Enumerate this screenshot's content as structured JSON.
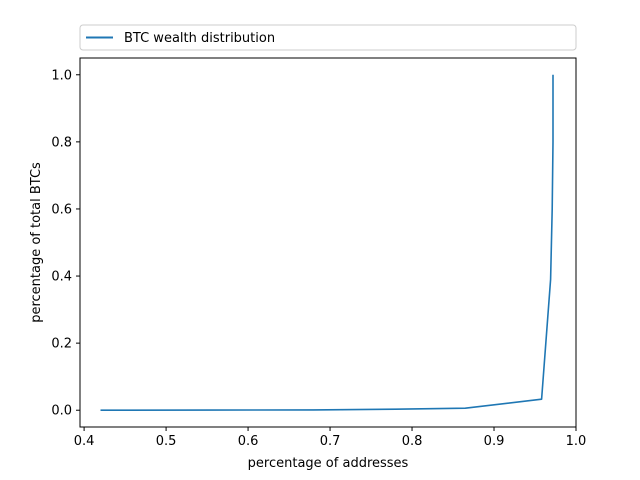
{
  "chart_data": {
    "type": "line",
    "xlabel": "percentage of addresses",
    "ylabel": "percentage of total BTCs",
    "xlim": [
      0.395,
      1.0
    ],
    "ylim": [
      -0.05,
      1.05
    ],
    "x_ticks": [
      0.4,
      0.5,
      0.6,
      0.7,
      0.8,
      0.9,
      1.0
    ],
    "x_tick_labels": [
      "0.4",
      "0.5",
      "0.6",
      "0.7",
      "0.8",
      "0.9",
      "1.0"
    ],
    "y_ticks": [
      0.0,
      0.2,
      0.4,
      0.6,
      0.8,
      1.0
    ],
    "y_tick_labels": [
      "0.0",
      "0.2",
      "0.4",
      "0.6",
      "0.8",
      "1.0"
    ],
    "grid": false,
    "legend_position": "top, above plot",
    "series": [
      {
        "name": "BTC wealth distribution",
        "color": "#1f77b4",
        "x": [
          0.42,
          0.55,
          0.68,
          0.78,
          0.865,
          0.958,
          0.969,
          0.971,
          0.972,
          0.972
        ],
        "y": [
          0.0,
          0.0003,
          0.001,
          0.003,
          0.006,
          0.033,
          0.39,
          0.6,
          0.8,
          1.0
        ]
      }
    ]
  }
}
